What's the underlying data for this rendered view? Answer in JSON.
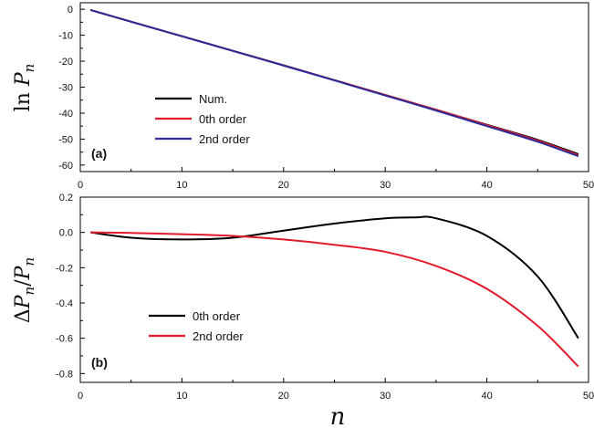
{
  "chart_data": [
    {
      "type": "line",
      "panel_label": "(a)",
      "ylabel": "ln P_n",
      "ylabel_parts": {
        "prefix": "ln ",
        "main": "P",
        "sub": "n"
      },
      "xlim": [
        0,
        50
      ],
      "ylim": [
        -62.5,
        2.5
      ],
      "xticks": [
        0,
        10,
        20,
        30,
        40,
        50
      ],
      "xtick_labels": [
        "0",
        "10",
        "20",
        "30",
        "40",
        "50"
      ],
      "yticks": [
        0,
        -10,
        -20,
        -30,
        -40,
        -50,
        -60
      ],
      "ytick_labels": [
        "0",
        "-10",
        "-20",
        "-30",
        "-40",
        "-50",
        "-60"
      ],
      "legend_position": "bottom-center",
      "series": [
        {
          "name": "Num.",
          "color": "#000000",
          "x": [
            1,
            5,
            10,
            15,
            20,
            25,
            30,
            35,
            40,
            45,
            49
          ],
          "y": [
            -0.3,
            -4.8,
            -10.4,
            -16.0,
            -21.6,
            -27.3,
            -33.0,
            -38.7,
            -44.5,
            -50.3,
            -55.8
          ]
        },
        {
          "name": "0th order",
          "color": "#e41a2b",
          "x": [
            1,
            5,
            10,
            15,
            20,
            25,
            30,
            35,
            40,
            45,
            49
          ],
          "y": [
            -0.3,
            -4.8,
            -10.4,
            -16.0,
            -21.6,
            -27.3,
            -33.0,
            -38.7,
            -44.6,
            -50.6,
            -56.2
          ]
        },
        {
          "name": "2nd order",
          "color": "#2b2b9a",
          "x": [
            1,
            5,
            10,
            15,
            20,
            25,
            30,
            35,
            40,
            45,
            49
          ],
          "y": [
            -0.3,
            -4.8,
            -10.4,
            -16.0,
            -21.7,
            -27.4,
            -33.2,
            -39.0,
            -45.0,
            -51.0,
            -56.6
          ]
        }
      ]
    },
    {
      "type": "line",
      "panel_label": "(b)",
      "ylabel": "ΔP_n/P_n",
      "ylabel_parts": {
        "delta": "Δ",
        "main": "P",
        "sub": "n",
        "slash": "/",
        "main2": "P",
        "sub2": "n"
      },
      "xlabel": "n",
      "xlim": [
        0,
        50
      ],
      "ylim": [
        -0.85,
        0.2
      ],
      "xticks": [
        0,
        10,
        20,
        30,
        40,
        50
      ],
      "xtick_labels": [
        "0",
        "10",
        "20",
        "30",
        "40",
        "50"
      ],
      "yticks": [
        0.2,
        0.0,
        -0.2,
        -0.4,
        -0.6,
        -0.8
      ],
      "ytick_labels": [
        "0.2",
        "0.0",
        "-0.2",
        "-0.4",
        "-0.6",
        "-0.8"
      ],
      "legend_position": "bottom-left",
      "series": [
        {
          "name": "0th order",
          "color": "#000000",
          "x": [
            1,
            5,
            10,
            15,
            20,
            25,
            30,
            33,
            35,
            40,
            45,
            49
          ],
          "y": [
            0.0,
            -0.03,
            -0.04,
            -0.03,
            0.01,
            0.05,
            0.08,
            0.085,
            0.08,
            -0.02,
            -0.25,
            -0.6
          ]
        },
        {
          "name": "2nd order",
          "color": "#e41a2b",
          "x": [
            1,
            5,
            10,
            15,
            20,
            25,
            30,
            35,
            40,
            45,
            49
          ],
          "y": [
            0.0,
            -0.003,
            -0.01,
            -0.02,
            -0.04,
            -0.07,
            -0.11,
            -0.19,
            -0.32,
            -0.53,
            -0.76
          ]
        }
      ]
    }
  ]
}
